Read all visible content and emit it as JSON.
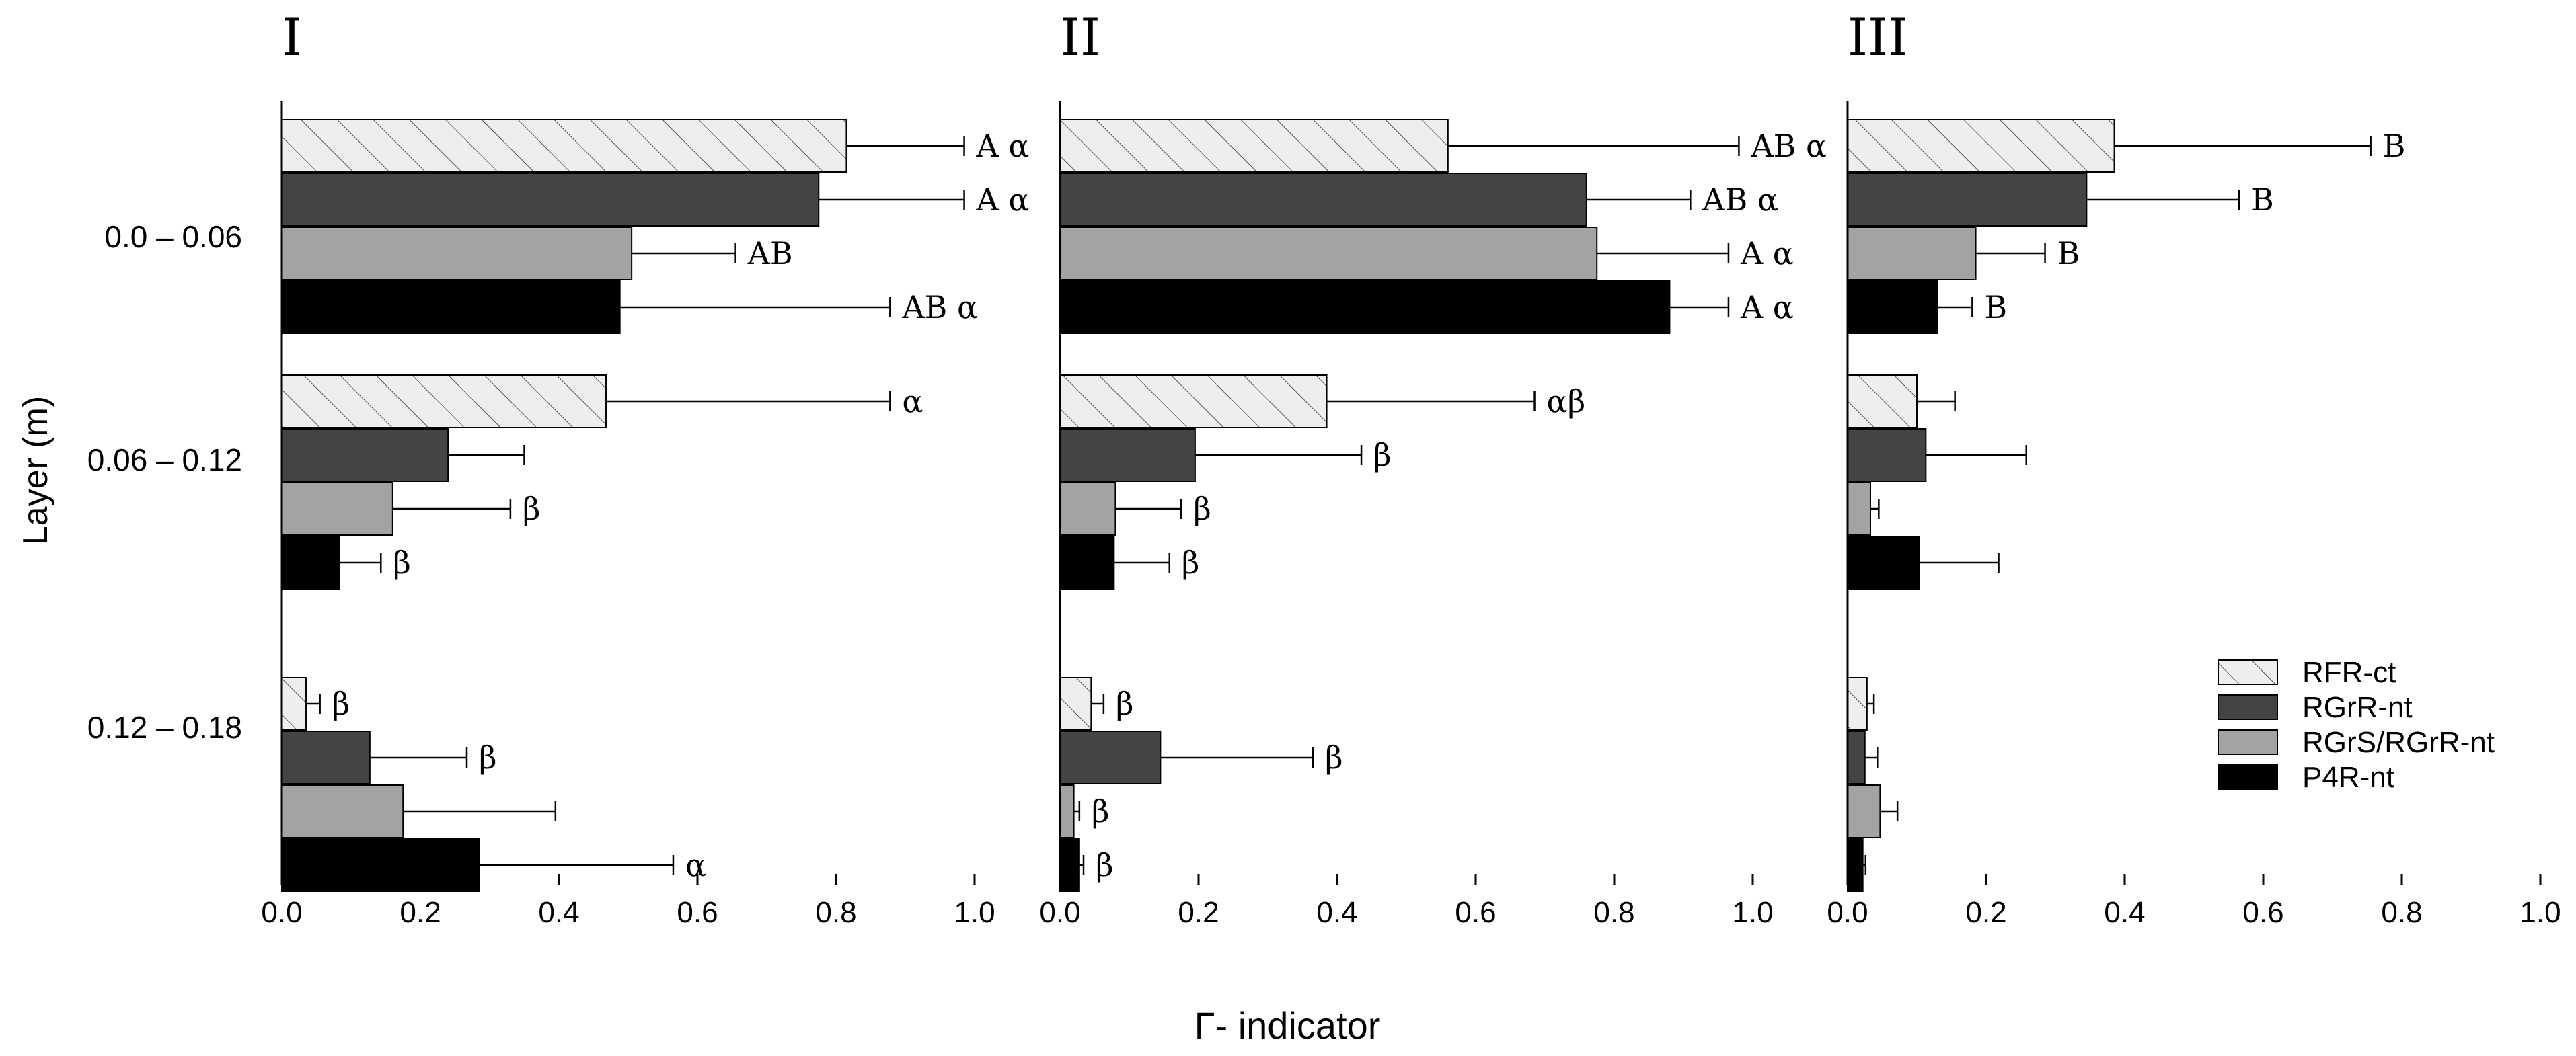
{
  "chart_data": {
    "type": "bar",
    "orientation": "horizontal",
    "ylabel": "Layer (m)",
    "xlabel": "Γ- indicator",
    "xlim": [
      0,
      1.0
    ],
    "xticks": [
      "0.0",
      "0.2",
      "0.4",
      "0.6",
      "0.8",
      "1.0"
    ],
    "categories": [
      "0.0 – 0.06",
      "0.06 – 0.12",
      "0.12 – 0.18"
    ],
    "series_names": [
      "RFR-ct",
      "RGrR-nt",
      "RGrS/RGrR-nt",
      "P4R-nt"
    ],
    "colors": {
      "RFR-ct": "#eeeeee",
      "RGrR-nt": "#444444",
      "RGrS/RGrR-nt": "#a3a3a3",
      "P4R-nt": "#000000",
      "hatch": "#555555",
      "axis": "#000000"
    },
    "legend": {
      "placement": "right of panel II, lower",
      "entries": [
        "RFR-ct",
        "RGrR-nt",
        "RGrS/RGrR-nt",
        "P4R-nt"
      ]
    },
    "panels": [
      {
        "title": "I",
        "layers": [
          {
            "layer": "0.0 – 0.06",
            "bars": [
              {
                "series": "RFR-ct",
                "value": 0.815,
                "error": 0.17,
                "label": "A α"
              },
              {
                "series": "RGrR-nt",
                "value": 0.775,
                "error": 0.21,
                "label": "A α"
              },
              {
                "series": "RGrS/RGrR-nt",
                "value": 0.505,
                "error": 0.15,
                "label": "AB"
              },
              {
                "series": "P4R-nt",
                "value": 0.488,
                "error": 0.39,
                "label": "AB α"
              }
            ]
          },
          {
            "layer": "0.06 – 0.12",
            "bars": [
              {
                "series": "RFR-ct",
                "value": 0.468,
                "error": 0.41,
                "label": "α"
              },
              {
                "series": "RGrR-nt",
                "value": 0.24,
                "error": 0.11,
                "label": ""
              },
              {
                "series": "RGrS/RGrR-nt",
                "value": 0.16,
                "error": 0.17,
                "label": "β"
              },
              {
                "series": "P4R-nt",
                "value": 0.083,
                "error": 0.06,
                "label": "β"
              }
            ]
          },
          {
            "layer": "0.12 – 0.18",
            "bars": [
              {
                "series": "RFR-ct",
                "value": 0.035,
                "error": 0.02,
                "label": "β"
              },
              {
                "series": "RGrR-nt",
                "value": 0.127,
                "error": 0.14,
                "label": "β"
              },
              {
                "series": "RGrS/RGrR-nt",
                "value": 0.175,
                "error": 0.22,
                "label": ""
              },
              {
                "series": "P4R-nt",
                "value": 0.285,
                "error": 0.28,
                "label": "α"
              }
            ]
          }
        ]
      },
      {
        "title": "II",
        "layers": [
          {
            "layer": "0.0 – 0.06",
            "bars": [
              {
                "series": "RFR-ct",
                "value": 0.56,
                "error": 0.42,
                "label": "AB α"
              },
              {
                "series": "RGrR-nt",
                "value": 0.76,
                "error": 0.15,
                "label": "AB α"
              },
              {
                "series": "RGrS/RGrR-nt",
                "value": 0.775,
                "error": 0.19,
                "label": "A α"
              },
              {
                "series": "P4R-nt",
                "value": 0.88,
                "error": 0.085,
                "label": "A α"
              }
            ]
          },
          {
            "layer": "0.06 – 0.12",
            "bars": [
              {
                "series": "RFR-ct",
                "value": 0.385,
                "error": 0.3,
                "label": "αβ"
              },
              {
                "series": "RGrR-nt",
                "value": 0.195,
                "error": 0.24,
                "label": "β"
              },
              {
                "series": "RGrS/RGrR-nt",
                "value": 0.08,
                "error": 0.095,
                "label": "β"
              },
              {
                "series": "P4R-nt",
                "value": 0.078,
                "error": 0.08,
                "label": "β"
              }
            ]
          },
          {
            "layer": "0.12 – 0.18",
            "bars": [
              {
                "series": "RFR-ct",
                "value": 0.045,
                "error": 0.018,
                "label": "β"
              },
              {
                "series": "RGrR-nt",
                "value": 0.145,
                "error": 0.22,
                "label": "β"
              },
              {
                "series": "RGrS/RGrR-nt",
                "value": 0.02,
                "error": 0.008,
                "label": "β"
              },
              {
                "series": "P4R-nt",
                "value": 0.028,
                "error": 0.006,
                "label": "β"
              }
            ]
          }
        ]
      },
      {
        "title": "III",
        "layers": [
          {
            "layer": "0.0 – 0.06",
            "bars": [
              {
                "series": "RFR-ct",
                "value": 0.385,
                "error": 0.37,
                "label": "B"
              },
              {
                "series": "RGrR-nt",
                "value": 0.345,
                "error": 0.22,
                "label": "B"
              },
              {
                "series": "RGrS/RGrR-nt",
                "value": 0.185,
                "error": 0.1,
                "label": "B"
              },
              {
                "series": "P4R-nt",
                "value": 0.13,
                "error": 0.05,
                "label": "B"
              }
            ]
          },
          {
            "layer": "0.06 – 0.12",
            "bars": [
              {
                "series": "RFR-ct",
                "value": 0.1,
                "error": 0.055,
                "label": ""
              },
              {
                "series": "RGrR-nt",
                "value": 0.113,
                "error": 0.145,
                "label": ""
              },
              {
                "series": "RGrS/RGrR-nt",
                "value": 0.033,
                "error": 0.012,
                "label": ""
              },
              {
                "series": "P4R-nt",
                "value": 0.103,
                "error": 0.115,
                "label": ""
              }
            ]
          },
          {
            "layer": "0.12 – 0.18",
            "bars": [
              {
                "series": "RFR-ct",
                "value": 0.028,
                "error": 0.01,
                "label": ""
              },
              {
                "series": "RGrR-nt",
                "value": 0.025,
                "error": 0.018,
                "label": ""
              },
              {
                "series": "RGrS/RGrR-nt",
                "value": 0.047,
                "error": 0.025,
                "label": ""
              },
              {
                "series": "P4R-nt",
                "value": 0.022,
                "error": 0.004,
                "label": ""
              }
            ]
          }
        ]
      }
    ]
  }
}
